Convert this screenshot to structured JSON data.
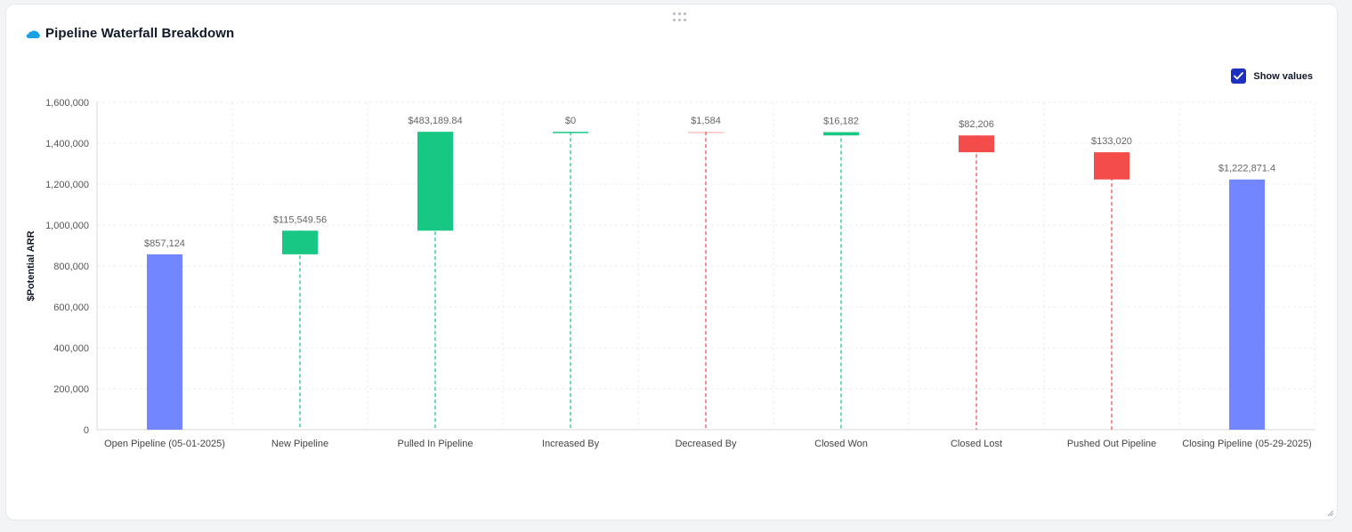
{
  "header": {
    "title": "Pipeline Waterfall Breakdown",
    "icon": "salesforce-cloud-icon",
    "icon_color": "#1ba1e2"
  },
  "controls": {
    "show_values_label": "Show values",
    "show_values_checked": true,
    "checkbox_color": "#1d2fbf"
  },
  "chart_data": {
    "type": "bar",
    "variant": "waterfall",
    "title": "",
    "xlabel": "",
    "ylabel": "$Potential ARR",
    "ylim": [
      0,
      1600000
    ],
    "yticks": [
      0,
      200000,
      400000,
      600000,
      800000,
      1000000,
      1200000,
      1400000,
      1600000
    ],
    "ytick_labels": [
      "0",
      "200,000",
      "400,000",
      "600,000",
      "800,000",
      "1,000,000",
      "1,200,000",
      "1,400,000",
      "1,600,000"
    ],
    "grid": true,
    "colors": {
      "total": "#7286ff",
      "increase": "#18c784",
      "decrease": "#f44b4b",
      "connector_increase": "#3ed191",
      "connector_decrease": "#f46a6a"
    },
    "categories": [
      "Open Pipeline (05-01-2025)",
      "New Pipeline",
      "Pulled In Pipeline",
      "Increased By",
      "Decreased By",
      "Closed Won",
      "Closed Lost",
      "Pushed Out Pipeline",
      "Closing Pipeline (05-29-2025)"
    ],
    "bars": [
      {
        "kind": "total",
        "start": 0,
        "end": 857124,
        "label": "$857,124"
      },
      {
        "kind": "increase",
        "start": 857124,
        "end": 972673.56,
        "label": "$115,549.56"
      },
      {
        "kind": "increase",
        "start": 972673.56,
        "end": 1455863.4,
        "label": "$483,189.84"
      },
      {
        "kind": "increase",
        "start": 1455863.4,
        "end": 1455863.4,
        "label": "$0"
      },
      {
        "kind": "decrease",
        "start": 1455863.4,
        "end": 1454279.4,
        "label": "$1,584"
      },
      {
        "kind": "increase",
        "start": 1438097.4,
        "end": 1454279.4,
        "label": "$16,182"
      },
      {
        "kind": "decrease",
        "start": 1438097.4,
        "end": 1355891.4,
        "label": "$82,206"
      },
      {
        "kind": "decrease",
        "start": 1355891.4,
        "end": 1222871.4,
        "label": "$133,020"
      },
      {
        "kind": "total",
        "start": 0,
        "end": 1222871.4,
        "label": "$1,222,871.4"
      }
    ]
  }
}
